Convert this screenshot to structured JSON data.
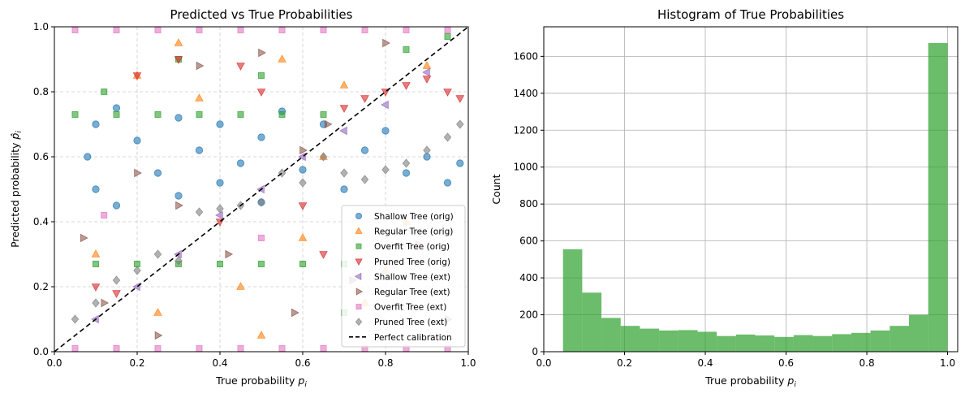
{
  "chart_data": [
    {
      "type": "scatter",
      "title": "Predicted vs True Probabilities",
      "xlabel": "True probability",
      "xlabel_symbol": "p",
      "xlabel_sub": "i",
      "ylabel": "Predicted probability",
      "ylabel_symbol": "p̂",
      "ylabel_sub": "i",
      "xlim": [
        0,
        1
      ],
      "ylim": [
        0,
        1
      ],
      "xticks": [
        0.0,
        0.2,
        0.4,
        0.6,
        0.8,
        1.0
      ],
      "yticks": [
        0.0,
        0.2,
        0.4,
        0.6,
        0.8,
        1.0
      ],
      "tick_labels": [
        "0.0",
        "0.2",
        "0.4",
        "0.6",
        "0.8",
        "1.0"
      ],
      "grid": "dashed",
      "legend_placement": "lower-right",
      "series": [
        {
          "name": "Shallow Tree (orig)",
          "color": "#1f77b4",
          "marker": "circle",
          "points": [
            [
              0.08,
              0.6
            ],
            [
              0.1,
              0.7
            ],
            [
              0.1,
              0.5
            ],
            [
              0.15,
              0.75
            ],
            [
              0.15,
              0.45
            ],
            [
              0.2,
              0.65
            ],
            [
              0.25,
              0.55
            ],
            [
              0.3,
              0.72
            ],
            [
              0.3,
              0.48
            ],
            [
              0.35,
              0.62
            ],
            [
              0.4,
              0.7
            ],
            [
              0.4,
              0.52
            ],
            [
              0.45,
              0.58
            ],
            [
              0.5,
              0.66
            ],
            [
              0.5,
              0.46
            ],
            [
              0.55,
              0.74
            ],
            [
              0.6,
              0.56
            ],
            [
              0.65,
              0.7
            ],
            [
              0.7,
              0.5
            ],
            [
              0.75,
              0.62
            ],
            [
              0.8,
              0.68
            ],
            [
              0.85,
              0.55
            ],
            [
              0.9,
              0.6
            ],
            [
              0.95,
              0.52
            ],
            [
              0.98,
              0.58
            ]
          ]
        },
        {
          "name": "Regular Tree (orig)",
          "color": "#ff7f0e",
          "marker": "triangle-up",
          "points": [
            [
              0.1,
              0.3
            ],
            [
              0.2,
              0.85
            ],
            [
              0.25,
              0.12
            ],
            [
              0.35,
              0.78
            ],
            [
              0.45,
              0.2
            ],
            [
              0.55,
              0.9
            ],
            [
              0.6,
              0.35
            ],
            [
              0.7,
              0.82
            ],
            [
              0.75,
              0.15
            ],
            [
              0.85,
              0.4
            ],
            [
              0.9,
              0.88
            ],
            [
              0.3,
              0.95
            ],
            [
              0.5,
              0.05
            ],
            [
              0.65,
              0.6
            ],
            [
              0.8,
              0.25
            ]
          ]
        },
        {
          "name": "Overfit Tree (orig)",
          "color": "#2ca02c",
          "marker": "square",
          "points": [
            [
              0.05,
              0.73
            ],
            [
              0.15,
              0.73
            ],
            [
              0.25,
              0.73
            ],
            [
              0.35,
              0.73
            ],
            [
              0.45,
              0.73
            ],
            [
              0.55,
              0.73
            ],
            [
              0.65,
              0.73
            ],
            [
              0.1,
              0.27
            ],
            [
              0.2,
              0.27
            ],
            [
              0.3,
              0.27
            ],
            [
              0.4,
              0.27
            ],
            [
              0.5,
              0.27
            ],
            [
              0.6,
              0.27
            ],
            [
              0.7,
              0.27
            ],
            [
              0.12,
              0.8
            ],
            [
              0.3,
              0.9
            ],
            [
              0.5,
              0.85
            ],
            [
              0.7,
              0.12
            ],
            [
              0.85,
              0.93
            ],
            [
              0.95,
              0.97
            ]
          ]
        },
        {
          "name": "Pruned Tree (orig)",
          "color": "#d62728",
          "marker": "triangle-down",
          "points": [
            [
              0.1,
              0.2
            ],
            [
              0.15,
              0.18
            ],
            [
              0.2,
              0.85
            ],
            [
              0.3,
              0.9
            ],
            [
              0.4,
              0.4
            ],
            [
              0.5,
              0.8
            ],
            [
              0.6,
              0.45
            ],
            [
              0.7,
              0.75
            ],
            [
              0.75,
              0.78
            ],
            [
              0.8,
              0.8
            ],
            [
              0.85,
              0.82
            ],
            [
              0.9,
              0.84
            ],
            [
              0.95,
              0.8
            ],
            [
              0.98,
              0.78
            ],
            [
              0.65,
              0.3
            ],
            [
              0.45,
              0.88
            ]
          ]
        },
        {
          "name": "Shallow Tree (ext)",
          "color": "#9467bd",
          "marker": "triangle-left",
          "points": [
            [
              0.1,
              0.1
            ],
            [
              0.2,
              0.2
            ],
            [
              0.3,
              0.3
            ],
            [
              0.4,
              0.42
            ],
            [
              0.5,
              0.5
            ],
            [
              0.6,
              0.6
            ],
            [
              0.7,
              0.68
            ],
            [
              0.8,
              0.76
            ],
            [
              0.9,
              0.86
            ]
          ]
        },
        {
          "name": "Regular Tree (ext)",
          "color": "#8c564b",
          "marker": "triangle-right",
          "points": [
            [
              0.07,
              0.35
            ],
            [
              0.12,
              0.15
            ],
            [
              0.2,
              0.55
            ],
            [
              0.25,
              0.05
            ],
            [
              0.35,
              0.88
            ],
            [
              0.42,
              0.3
            ],
            [
              0.5,
              0.92
            ],
            [
              0.58,
              0.12
            ],
            [
              0.66,
              0.7
            ],
            [
              0.72,
              0.22
            ],
            [
              0.8,
              0.95
            ],
            [
              0.88,
              0.33
            ],
            [
              0.95,
              0.1
            ],
            [
              0.3,
              0.45
            ],
            [
              0.6,
              0.62
            ]
          ]
        },
        {
          "name": "Overfit Tree (ext)",
          "color": "#e377c2",
          "marker": "x-square",
          "points": [
            [
              0.05,
              0.99
            ],
            [
              0.15,
              0.99
            ],
            [
              0.25,
              0.99
            ],
            [
              0.35,
              0.99
            ],
            [
              0.45,
              0.99
            ],
            [
              0.55,
              0.99
            ],
            [
              0.65,
              0.99
            ],
            [
              0.75,
              0.99
            ],
            [
              0.85,
              0.99
            ],
            [
              0.95,
              0.99
            ],
            [
              0.05,
              0.01
            ],
            [
              0.15,
              0.01
            ],
            [
              0.25,
              0.01
            ],
            [
              0.35,
              0.01
            ],
            [
              0.45,
              0.01
            ],
            [
              0.55,
              0.01
            ],
            [
              0.65,
              0.01
            ],
            [
              0.75,
              0.01
            ],
            [
              0.85,
              0.01
            ],
            [
              0.95,
              0.01
            ],
            [
              0.12,
              0.42
            ],
            [
              0.5,
              0.35
            ]
          ]
        },
        {
          "name": "Pruned Tree (ext)",
          "color": "#7f7f7f",
          "marker": "diamond",
          "points": [
            [
              0.05,
              0.1
            ],
            [
              0.1,
              0.15
            ],
            [
              0.15,
              0.22
            ],
            [
              0.2,
              0.25
            ],
            [
              0.25,
              0.3
            ],
            [
              0.3,
              0.28
            ],
            [
              0.35,
              0.43
            ],
            [
              0.4,
              0.44
            ],
            [
              0.45,
              0.45
            ],
            [
              0.5,
              0.46
            ],
            [
              0.55,
              0.55
            ],
            [
              0.6,
              0.52
            ],
            [
              0.65,
              0.6
            ],
            [
              0.7,
              0.55
            ],
            [
              0.75,
              0.53
            ],
            [
              0.8,
              0.56
            ],
            [
              0.85,
              0.58
            ],
            [
              0.9,
              0.62
            ],
            [
              0.95,
              0.66
            ],
            [
              0.98,
              0.7
            ]
          ]
        },
        {
          "name": "Perfect calibration",
          "color": "#000000",
          "marker": "dashed-line",
          "points": [
            [
              0,
              0
            ],
            [
              1,
              1
            ]
          ]
        }
      ]
    },
    {
      "type": "bar",
      "title": "Histogram of True Probabilities",
      "xlabel": "True probability",
      "xlabel_symbol": "p",
      "xlabel_sub": "i",
      "ylabel": "Count",
      "xlim": [
        0,
        1.025
      ],
      "ylim": [
        0,
        1760
      ],
      "xticks": [
        0.0,
        0.2,
        0.4,
        0.6,
        0.8,
        1.0
      ],
      "xtick_labels": [
        "0.0",
        "0.2",
        "0.4",
        "0.6",
        "0.8",
        "1.0"
      ],
      "yticks": [
        0,
        200,
        400,
        600,
        800,
        1000,
        1200,
        1400,
        1600
      ],
      "ytick_labels": [
        "0",
        "200",
        "400",
        "600",
        "800",
        "1000",
        "1200",
        "1400",
        "1600"
      ],
      "grid": "solid",
      "color": "#2ca02c",
      "bins": [
        0.0476,
        0.0952,
        0.1428,
        0.1904,
        0.238,
        0.2856,
        0.3332,
        0.3808,
        0.4284,
        0.476,
        0.5236,
        0.5712,
        0.6188,
        0.6664,
        0.714,
        0.7616,
        0.8092,
        0.8568,
        0.9044,
        0.952,
        1.0
      ],
      "counts": [
        555,
        320,
        183,
        140,
        125,
        115,
        117,
        108,
        85,
        93,
        88,
        80,
        90,
        85,
        95,
        102,
        115,
        140,
        200,
        1672
      ]
    }
  ]
}
